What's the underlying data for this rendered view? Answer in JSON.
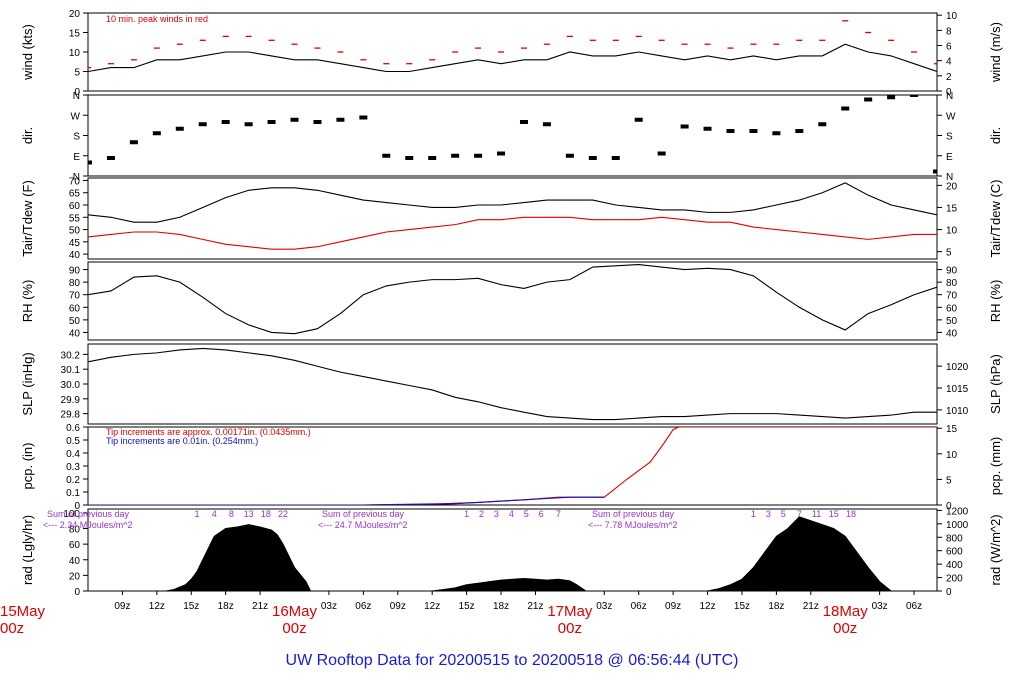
{
  "colors": {
    "main": "#000000",
    "accent_red": "#e00000",
    "accent_blue": "#1010c0",
    "purple": "#9933cc",
    "title_blue": "#1a1adc"
  },
  "title": "UW Rooftop Data for 20200515  to  20200518 @ 06:56:44  (UTC)",
  "x_axis": {
    "hour_ticks": [
      "09z",
      "12z",
      "15z",
      "18z",
      "21z",
      "03z",
      "06z",
      "09z",
      "12z",
      "15z",
      "18z",
      "21z",
      "03z",
      "06z",
      "09z",
      "12z",
      "15z",
      "18z",
      "21z",
      "03z",
      "06z"
    ],
    "hour_values": [
      9,
      12,
      15,
      18,
      21,
      27,
      30,
      33,
      36,
      39,
      42,
      45,
      51,
      54,
      57,
      60,
      63,
      66,
      69,
      75,
      78
    ],
    "date_labels": [
      {
        "date": "15May",
        "hour": "00z",
        "t": 0
      },
      {
        "date": "16May",
        "hour": "00z",
        "t": 24
      },
      {
        "date": "17May",
        "hour": "00z",
        "t": 48
      },
      {
        "date": "18May",
        "hour": "00z",
        "t": 72
      }
    ],
    "range": [
      6,
      80
    ],
    "units": "hours since 15May 00z"
  },
  "chart_data": [
    {
      "id": "wind",
      "type": "line",
      "title": "10 min. peak winds in red",
      "ylabel": "wind (kts)",
      "ylabel_right": "wind (m/s)",
      "ylim": [
        0,
        20
      ],
      "yticks": [
        0,
        5,
        10,
        15,
        20
      ],
      "yticks_right": [
        0,
        2,
        4,
        6,
        8,
        10
      ],
      "right_scale": 0.5144,
      "series": [
        {
          "name": "wind",
          "x": [
            6,
            8,
            10,
            12,
            14,
            16,
            18,
            20,
            22,
            24,
            26,
            28,
            30,
            32,
            34,
            36,
            38,
            40,
            42,
            44,
            46,
            48,
            50,
            52,
            54,
            56,
            58,
            60,
            62,
            64,
            66,
            68,
            70,
            72,
            74,
            76,
            78,
            80
          ],
          "values": [
            5,
            6,
            6,
            8,
            8,
            9,
            10,
            10,
            9,
            8,
            8,
            7,
            6,
            5,
            5,
            6,
            7,
            8,
            7,
            8,
            8,
            10,
            9,
            9,
            10,
            9,
            8,
            9,
            8,
            9,
            8,
            9,
            9,
            12,
            10,
            9,
            7,
            5
          ]
        },
        {
          "name": "peak",
          "x": [
            6,
            8,
            10,
            12,
            14,
            16,
            18,
            20,
            22,
            24,
            26,
            28,
            30,
            32,
            34,
            36,
            38,
            40,
            42,
            44,
            46,
            48,
            50,
            52,
            54,
            56,
            58,
            60,
            62,
            64,
            66,
            68,
            70,
            72,
            74,
            76,
            78,
            80
          ],
          "values": [
            6,
            7,
            8,
            11,
            12,
            13,
            14,
            14,
            13,
            12,
            11,
            10,
            8,
            7,
            7,
            8,
            10,
            11,
            10,
            11,
            12,
            14,
            13,
            13,
            14,
            13,
            12,
            12,
            11,
            12,
            12,
            13,
            13,
            18,
            15,
            13,
            10,
            7
          ]
        }
      ]
    },
    {
      "id": "dir",
      "type": "scatter",
      "ylabel": "dir.",
      "ylabel_right": "dir.",
      "ylim": [
        0,
        360
      ],
      "ytick_labels": [
        "N",
        "E",
        "S",
        "W",
        "N"
      ],
      "ytick_values": [
        0,
        90,
        180,
        270,
        360
      ],
      "series": [
        {
          "name": "direction",
          "x": [
            6,
            8,
            10,
            12,
            14,
            16,
            18,
            20,
            22,
            24,
            26,
            28,
            30,
            32,
            34,
            36,
            38,
            40,
            42,
            44,
            46,
            48,
            50,
            52,
            54,
            56,
            58,
            60,
            62,
            64,
            66,
            68,
            70,
            72,
            74,
            76,
            78,
            80
          ],
          "values": [
            60,
            80,
            150,
            190,
            210,
            230,
            240,
            230,
            240,
            250,
            240,
            250,
            260,
            90,
            80,
            80,
            90,
            90,
            100,
            240,
            230,
            90,
            80,
            80,
            250,
            100,
            220,
            210,
            200,
            200,
            190,
            200,
            230,
            300,
            340,
            350,
            360,
            20
          ]
        }
      ]
    },
    {
      "id": "temp",
      "type": "line",
      "ylabel": "Tair/Tdew (F)",
      "ylabel_right": "Tair/Tdew (C)",
      "ylim": [
        38,
        71
      ],
      "yticks": [
        40,
        45,
        50,
        55,
        60,
        65,
        70
      ],
      "yticks_right": [
        5,
        10,
        15,
        20
      ],
      "series": [
        {
          "name": "Tair",
          "x": [
            6,
            8,
            10,
            12,
            14,
            16,
            18,
            20,
            22,
            24,
            26,
            28,
            30,
            32,
            34,
            36,
            38,
            40,
            42,
            44,
            46,
            48,
            50,
            52,
            54,
            56,
            58,
            60,
            62,
            64,
            66,
            68,
            70,
            72,
            74,
            76,
            78,
            80
          ],
          "values": [
            56,
            55,
            53,
            53,
            55,
            59,
            63,
            66,
            67,
            67,
            66,
            64,
            62,
            61,
            60,
            59,
            59,
            60,
            60,
            61,
            62,
            62,
            62,
            60,
            59,
            58,
            58,
            57,
            57,
            58,
            60,
            62,
            65,
            69,
            64,
            60,
            58,
            56
          ]
        },
        {
          "name": "Tdew",
          "x": [
            6,
            8,
            10,
            12,
            14,
            16,
            18,
            20,
            22,
            24,
            26,
            28,
            30,
            32,
            34,
            36,
            38,
            40,
            42,
            44,
            46,
            48,
            50,
            52,
            54,
            56,
            58,
            60,
            62,
            64,
            66,
            68,
            70,
            72,
            74,
            76,
            78,
            80
          ],
          "values": [
            47,
            48,
            49,
            49,
            48,
            46,
            44,
            43,
            42,
            42,
            43,
            45,
            47,
            49,
            50,
            51,
            52,
            54,
            54,
            55,
            55,
            55,
            54,
            54,
            54,
            55,
            54,
            53,
            53,
            51,
            50,
            49,
            48,
            47,
            46,
            47,
            48,
            48
          ]
        }
      ]
    },
    {
      "id": "rh",
      "type": "line",
      "ylabel": "RH (%)",
      "ylabel_right": "RH (%)",
      "ylim": [
        34,
        96
      ],
      "yticks": [
        40,
        50,
        60,
        70,
        80,
        90
      ],
      "yticks_right": [
        40,
        50,
        60,
        70,
        80,
        90
      ],
      "series": [
        {
          "name": "RH",
          "x": [
            6,
            8,
            10,
            12,
            14,
            16,
            18,
            20,
            22,
            24,
            26,
            28,
            30,
            32,
            34,
            36,
            38,
            40,
            42,
            44,
            46,
            48,
            50,
            52,
            54,
            56,
            58,
            60,
            62,
            64,
            66,
            68,
            70,
            72,
            74,
            76,
            78,
            80
          ],
          "values": [
            70,
            73,
            84,
            85,
            80,
            68,
            55,
            46,
            40,
            39,
            43,
            55,
            70,
            77,
            80,
            82,
            82,
            83,
            78,
            75,
            80,
            82,
            92,
            93,
            94,
            92,
            90,
            91,
            90,
            85,
            72,
            60,
            50,
            42,
            55,
            62,
            70,
            76
          ]
        }
      ]
    },
    {
      "id": "slp",
      "type": "line",
      "ylabel": "SLP (inHg)",
      "ylabel_right": "SLP (hPa)",
      "ylim": [
        29.73,
        30.27
      ],
      "yticks": [
        29.8,
        29.9,
        30.0,
        30.1,
        30.2
      ],
      "ytick_labels": [
        "29.8",
        "29.9",
        "30.0",
        "30.1",
        "30.2"
      ],
      "yticks_right_hpa": [
        1010,
        1015,
        1020
      ],
      "series": [
        {
          "name": "SLP",
          "x": [
            6,
            8,
            10,
            12,
            14,
            16,
            18,
            20,
            22,
            24,
            26,
            28,
            30,
            32,
            34,
            36,
            38,
            40,
            42,
            44,
            46,
            48,
            50,
            52,
            54,
            56,
            58,
            60,
            62,
            64,
            66,
            68,
            70,
            72,
            74,
            76,
            78,
            80
          ],
          "values": [
            30.15,
            30.18,
            30.2,
            30.21,
            30.23,
            30.24,
            30.23,
            30.21,
            30.19,
            30.16,
            30.12,
            30.08,
            30.05,
            30.02,
            29.99,
            29.96,
            29.91,
            29.88,
            29.84,
            29.81,
            29.78,
            29.77,
            29.76,
            29.76,
            29.77,
            29.78,
            29.78,
            29.79,
            29.8,
            29.8,
            29.8,
            29.79,
            29.78,
            29.77,
            29.78,
            29.79,
            29.81,
            29.81
          ]
        }
      ]
    },
    {
      "id": "pcp",
      "type": "line",
      "ylabel": "pcp. (in)",
      "ylabel_right": "pcp. (mm)",
      "ylim": [
        0,
        0.6
      ],
      "yticks": [
        0,
        0.1,
        0.2,
        0.3,
        0.4,
        0.5,
        0.6
      ],
      "ytick_labels": [
        "0",
        "0.1",
        "0.2",
        "0.3",
        "0.4",
        "0.5",
        "0.6"
      ],
      "yticks_right_mm": [
        0,
        5,
        10,
        15
      ],
      "annotations": [
        "Tip increments are approx. 0.00171in. (0.0435mm.)",
        "Tip increments are 0.01in. (0.254mm.)"
      ],
      "series": [
        {
          "name": "pcp_fine",
          "x": [
            6,
            30,
            37,
            40,
            44,
            47,
            51,
            53,
            55,
            56,
            57,
            57.5,
            80
          ],
          "values": [
            0,
            0,
            0.01,
            0.02,
            0.04,
            0.06,
            0.06,
            0.2,
            0.33,
            0.45,
            0.58,
            0.6,
            0.6
          ]
        },
        {
          "name": "pcp_coarse",
          "x": [
            6,
            30,
            36,
            38,
            40,
            42,
            44,
            46,
            48,
            50,
            51
          ],
          "values": [
            0,
            0,
            0.005,
            0.01,
            0.02,
            0.03,
            0.04,
            0.05,
            0.06,
            0.06,
            0.06
          ]
        }
      ]
    },
    {
      "id": "rad",
      "type": "area",
      "ylabel": "rad (Lgly/hr)",
      "ylabel_right": "rad (W/m^2)",
      "ylim": [
        0,
        105
      ],
      "yticks": [
        0,
        20,
        40,
        60,
        80,
        100
      ],
      "yticks_right": [
        0,
        200,
        400,
        600,
        800,
        1000,
        1200
      ],
      "series": [
        {
          "name": "radiation",
          "x": [
            12.8,
            13.5,
            14.5,
            15,
            15.5,
            16,
            17,
            18,
            19,
            20,
            21,
            22,
            22.5,
            23,
            23.5,
            24,
            25,
            25.4,
            36,
            37,
            38,
            39,
            40,
            41,
            42,
            43,
            44,
            45,
            46,
            47,
            48,
            48.6,
            49.4,
            60,
            61,
            62,
            63,
            64,
            65,
            66,
            67,
            68,
            69,
            70,
            71,
            72,
            73,
            74,
            75,
            76
          ],
          "values": [
            0,
            2,
            8,
            15,
            25,
            40,
            70,
            80,
            82,
            85,
            82,
            78,
            72,
            60,
            45,
            30,
            12,
            0,
            0,
            2,
            4,
            8,
            10,
            12,
            14,
            15,
            16,
            15,
            14,
            15,
            13,
            8,
            0,
            0,
            3,
            8,
            15,
            30,
            50,
            70,
            80,
            95,
            90,
            85,
            80,
            70,
            50,
            30,
            12,
            0
          ]
        }
      ],
      "annotations_daily": [
        {
          "text": "Sum of previous day",
          "total": "<--- 2.34 MJoules/m^2"
        },
        {
          "text": "Sum of previous day",
          "total": "<--- 24.7 MJoules/m^2"
        },
        {
          "text": "Sum of previous day",
          "total": "<--- 7.78 MJoules/m^2"
        }
      ],
      "hour_marks": [
        {
          "labels": [
            "1",
            "4",
            "8",
            "13",
            "18",
            "22"
          ],
          "hours": [
            15.5,
            17,
            18.5,
            20,
            21.5,
            23
          ]
        },
        {
          "labels": [
            "1",
            "2",
            "3",
            "4",
            "5",
            "6",
            "7"
          ],
          "hours": [
            39,
            40.3,
            41.6,
            42.9,
            44.2,
            45.5,
            47
          ]
        },
        {
          "labels": [
            "1",
            "3",
            "5",
            "7",
            "11",
            "15",
            "18"
          ],
          "hours": [
            64,
            65.3,
            66.6,
            68,
            69.5,
            71,
            72.5
          ]
        }
      ]
    }
  ]
}
